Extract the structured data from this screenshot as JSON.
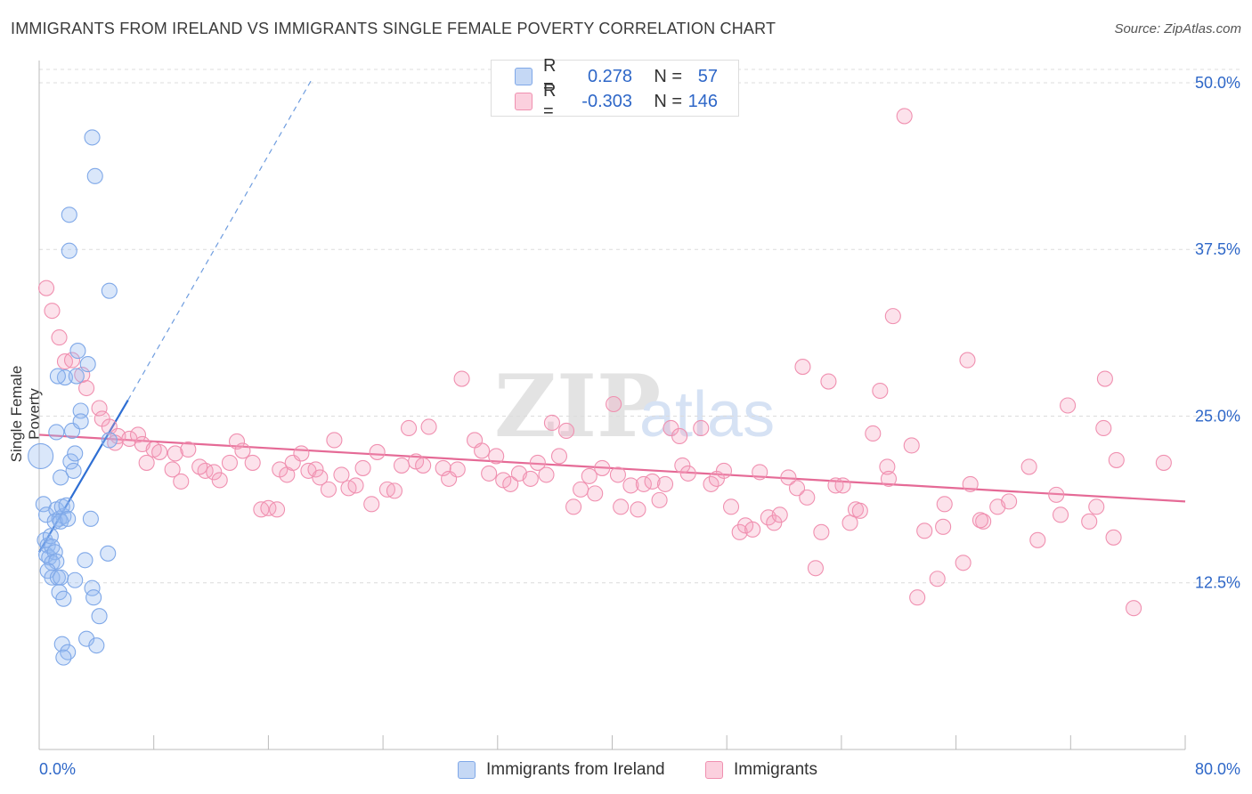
{
  "title": "IMMIGRANTS FROM IRELAND VS IMMIGRANTS SINGLE FEMALE POVERTY CORRELATION CHART",
  "source": "Source: ZipAtlas.com",
  "watermark": {
    "zip": "ZIP",
    "atlas": "atlas"
  },
  "legend_top": {
    "rows": [
      {
        "r_label": "R =",
        "r_value": "0.278",
        "n_label": "N =",
        "n_value": "57",
        "color": "#7fa8e8"
      },
      {
        "r_label": "R =",
        "r_value": "-0.303",
        "n_label": "N =",
        "n_value": "146",
        "color": "#f090b0"
      }
    ]
  },
  "legend_bottom": {
    "items": [
      {
        "label": "Immigrants from Ireland",
        "color": "#7fa8e8"
      },
      {
        "label": "Immigrants",
        "color": "#f090b0"
      }
    ]
  },
  "chart_data": {
    "type": "scatter",
    "title": "IMMIGRANTS FROM IRELAND VS IMMIGRANTS SINGLE FEMALE POVERTY CORRELATION CHART",
    "xlabel": "",
    "ylabel": "Single Female Poverty",
    "xlim": [
      0,
      80
    ],
    "ylim": [
      0,
      51
    ],
    "x_tick_labels": [
      "0.0%",
      "80.0%"
    ],
    "y_ticks": [
      12.5,
      25.0,
      37.5,
      50.0
    ],
    "y_tick_labels": [
      "12.5%",
      "25.0%",
      "37.5%",
      "50.0%"
    ],
    "grid": true,
    "series": [
      {
        "name": "Immigrants from Ireland",
        "color": "#7fa8e8",
        "trend": {
          "x": [
            0,
            6.2
          ],
          "y": [
            14.8,
            26.2
          ],
          "dashed_to": [
            19.0,
            50.2
          ]
        },
        "points": [
          [
            0.1,
            22.0
          ],
          [
            0.3,
            18.4
          ],
          [
            0.5,
            17.6
          ],
          [
            0.4,
            15.7
          ],
          [
            0.6,
            15.3
          ],
          [
            0.8,
            16.0
          ],
          [
            0.5,
            14.6
          ],
          [
            0.7,
            14.4
          ],
          [
            0.9,
            15.2
          ],
          [
            1.1,
            14.8
          ],
          [
            0.9,
            14.0
          ],
          [
            1.2,
            14.1
          ],
          [
            0.6,
            13.4
          ],
          [
            0.9,
            12.9
          ],
          [
            1.3,
            12.9
          ],
          [
            1.5,
            12.9
          ],
          [
            1.4,
            11.8
          ],
          [
            1.7,
            11.3
          ],
          [
            1.4,
            17.3
          ],
          [
            1.7,
            17.5
          ],
          [
            1.2,
            18.0
          ],
          [
            1.6,
            18.2
          ],
          [
            1.9,
            18.3
          ],
          [
            1.1,
            17.1
          ],
          [
            1.5,
            17.1
          ],
          [
            2.0,
            17.3
          ],
          [
            1.2,
            23.8
          ],
          [
            1.5,
            20.4
          ],
          [
            2.2,
            21.6
          ],
          [
            2.4,
            20.9
          ],
          [
            2.3,
            23.9
          ],
          [
            2.5,
            22.2
          ],
          [
            2.9,
            25.4
          ],
          [
            1.8,
            27.9
          ],
          [
            2.6,
            28.0
          ],
          [
            3.4,
            28.9
          ],
          [
            2.7,
            29.9
          ],
          [
            3.6,
            17.3
          ],
          [
            3.2,
            14.2
          ],
          [
            4.8,
            14.7
          ],
          [
            2.5,
            12.7
          ],
          [
            3.7,
            12.1
          ],
          [
            3.8,
            11.4
          ],
          [
            4.2,
            10.0
          ],
          [
            3.3,
            8.3
          ],
          [
            1.6,
            7.9
          ],
          [
            2.0,
            7.3
          ],
          [
            1.7,
            6.9
          ],
          [
            4.0,
            7.8
          ],
          [
            4.9,
            23.2
          ],
          [
            4.9,
            34.4
          ],
          [
            2.1,
            37.4
          ],
          [
            2.1,
            40.1
          ],
          [
            3.9,
            43.0
          ],
          [
            3.7,
            45.9
          ],
          [
            1.3,
            28.0
          ],
          [
            2.9,
            24.6
          ]
        ]
      },
      {
        "name": "Immigrants",
        "color": "#f090b0",
        "trend": {
          "x": [
            0,
            80
          ],
          "y": [
            23.6,
            18.6
          ]
        },
        "points": [
          [
            0.5,
            34.6
          ],
          [
            0.9,
            32.9
          ],
          [
            1.4,
            30.9
          ],
          [
            1.8,
            29.1
          ],
          [
            2.3,
            29.2
          ],
          [
            3.0,
            28.1
          ],
          [
            3.3,
            27.1
          ],
          [
            4.2,
            25.6
          ],
          [
            4.4,
            24.8
          ],
          [
            4.9,
            24.2
          ],
          [
            5.5,
            23.5
          ],
          [
            5.3,
            23.0
          ],
          [
            6.3,
            23.3
          ],
          [
            6.9,
            23.6
          ],
          [
            7.2,
            22.9
          ],
          [
            8.0,
            22.5
          ],
          [
            8.4,
            22.3
          ],
          [
            7.5,
            21.5
          ],
          [
            9.5,
            22.2
          ],
          [
            10.4,
            22.5
          ],
          [
            9.3,
            21.0
          ],
          [
            9.9,
            20.1
          ],
          [
            11.6,
            20.9
          ],
          [
            11.2,
            21.2
          ],
          [
            12.2,
            20.8
          ],
          [
            12.6,
            20.2
          ],
          [
            13.3,
            21.5
          ],
          [
            13.8,
            23.1
          ],
          [
            14.2,
            22.4
          ],
          [
            14.9,
            21.5
          ],
          [
            15.5,
            18.0
          ],
          [
            16.0,
            18.1
          ],
          [
            16.6,
            18.0
          ],
          [
            16.8,
            21.0
          ],
          [
            17.3,
            20.6
          ],
          [
            17.7,
            21.5
          ],
          [
            18.3,
            22.2
          ],
          [
            18.8,
            20.9
          ],
          [
            19.3,
            21.0
          ],
          [
            19.6,
            20.4
          ],
          [
            20.2,
            19.5
          ],
          [
            20.6,
            23.2
          ],
          [
            21.1,
            20.6
          ],
          [
            21.6,
            19.6
          ],
          [
            22.1,
            19.8
          ],
          [
            22.6,
            21.1
          ],
          [
            23.2,
            18.4
          ],
          [
            23.6,
            22.3
          ],
          [
            24.3,
            19.5
          ],
          [
            24.8,
            19.4
          ],
          [
            25.3,
            21.3
          ],
          [
            25.8,
            24.1
          ],
          [
            26.3,
            21.6
          ],
          [
            26.8,
            21.3
          ],
          [
            27.2,
            24.2
          ],
          [
            28.2,
            21.1
          ],
          [
            28.6,
            20.3
          ],
          [
            29.2,
            21.0
          ],
          [
            29.5,
            27.8
          ],
          [
            30.4,
            23.2
          ],
          [
            30.9,
            22.4
          ],
          [
            31.4,
            20.7
          ],
          [
            31.9,
            22.0
          ],
          [
            32.4,
            20.2
          ],
          [
            32.9,
            19.9
          ],
          [
            33.5,
            20.7
          ],
          [
            34.3,
            20.3
          ],
          [
            34.8,
            21.5
          ],
          [
            35.4,
            20.6
          ],
          [
            35.8,
            24.5
          ],
          [
            36.3,
            22.0
          ],
          [
            36.8,
            23.9
          ],
          [
            37.3,
            18.2
          ],
          [
            37.8,
            19.5
          ],
          [
            38.4,
            20.5
          ],
          [
            38.8,
            19.2
          ],
          [
            39.3,
            21.1
          ],
          [
            40.1,
            25.9
          ],
          [
            40.4,
            20.6
          ],
          [
            40.6,
            18.2
          ],
          [
            41.3,
            19.8
          ],
          [
            41.8,
            18.0
          ],
          [
            42.2,
            19.9
          ],
          [
            42.8,
            20.1
          ],
          [
            43.3,
            18.7
          ],
          [
            43.7,
            19.9
          ],
          [
            44.1,
            24.1
          ],
          [
            44.7,
            23.5
          ],
          [
            44.9,
            21.3
          ],
          [
            45.3,
            20.7
          ],
          [
            46.2,
            24.1
          ],
          [
            46.9,
            19.9
          ],
          [
            47.3,
            20.3
          ],
          [
            47.8,
            20.9
          ],
          [
            48.3,
            18.2
          ],
          [
            48.9,
            16.3
          ],
          [
            49.3,
            16.8
          ],
          [
            49.8,
            16.5
          ],
          [
            50.3,
            20.8
          ],
          [
            50.9,
            17.4
          ],
          [
            51.3,
            17.0
          ],
          [
            51.7,
            17.6
          ],
          [
            52.3,
            20.4
          ],
          [
            52.9,
            19.6
          ],
          [
            53.3,
            28.7
          ],
          [
            53.6,
            18.9
          ],
          [
            54.2,
            13.6
          ],
          [
            54.6,
            16.3
          ],
          [
            55.1,
            27.6
          ],
          [
            55.6,
            19.8
          ],
          [
            56.1,
            19.8
          ],
          [
            56.6,
            17.0
          ],
          [
            57.0,
            18.0
          ],
          [
            57.3,
            17.9
          ],
          [
            58.2,
            23.7
          ],
          [
            58.7,
            26.9
          ],
          [
            59.2,
            21.2
          ],
          [
            59.6,
            32.5
          ],
          [
            60.4,
            47.5
          ],
          [
            60.9,
            22.8
          ],
          [
            61.3,
            11.4
          ],
          [
            61.8,
            16.4
          ],
          [
            62.7,
            12.8
          ],
          [
            63.1,
            16.7
          ],
          [
            63.2,
            18.4
          ],
          [
            64.5,
            14.0
          ],
          [
            65.0,
            19.9
          ],
          [
            64.8,
            29.2
          ],
          [
            65.9,
            17.1
          ],
          [
            65.7,
            17.2
          ],
          [
            66.9,
            18.2
          ],
          [
            67.7,
            18.6
          ],
          [
            69.1,
            21.2
          ],
          [
            69.7,
            15.7
          ],
          [
            71.0,
            19.1
          ],
          [
            71.3,
            17.6
          ],
          [
            71.8,
            25.8
          ],
          [
            73.3,
            17.1
          ],
          [
            73.8,
            18.2
          ],
          [
            74.4,
            27.8
          ],
          [
            74.3,
            24.1
          ],
          [
            75.0,
            15.9
          ],
          [
            75.2,
            21.7
          ],
          [
            76.4,
            10.6
          ],
          [
            78.5,
            21.5
          ],
          [
            59.3,
            20.3
          ]
        ]
      }
    ]
  }
}
